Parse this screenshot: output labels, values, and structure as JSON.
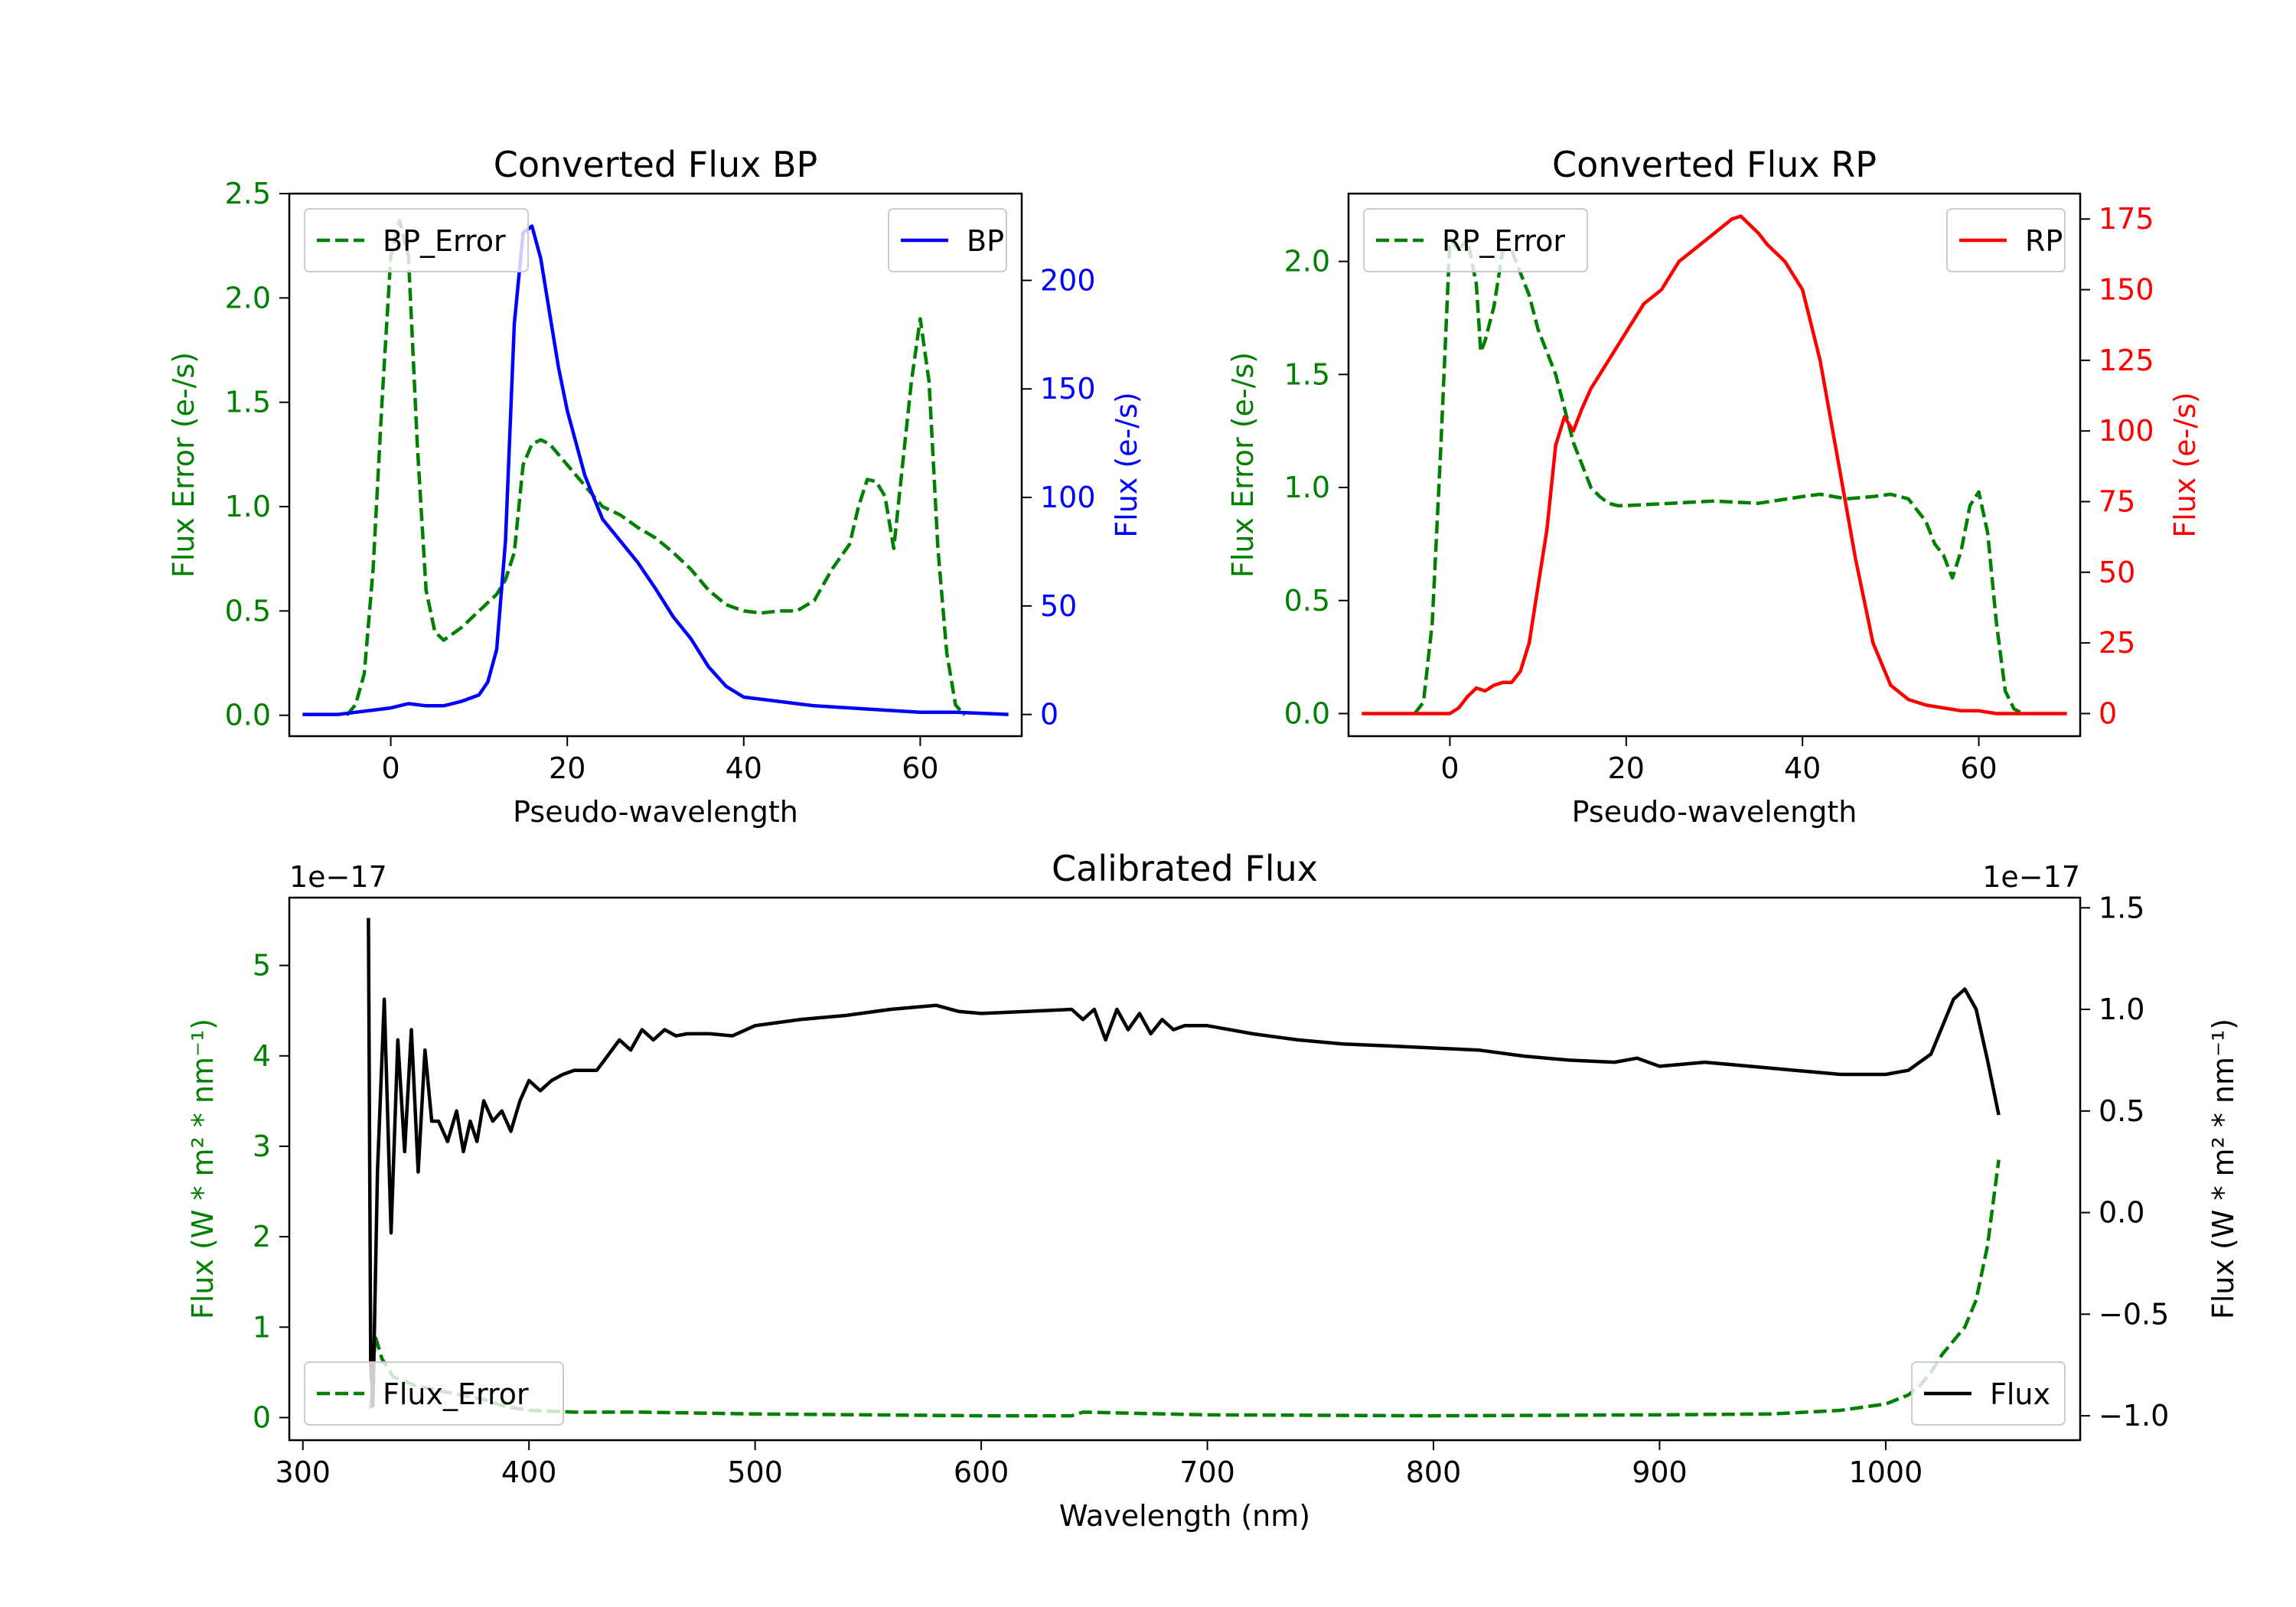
{
  "colors": {
    "green": "#008000",
    "blue": "#0000ff",
    "red": "#ff0000",
    "black": "#000000",
    "axis": "#000000",
    "legend_edge": "#cccccc"
  },
  "chart_data": [
    {
      "id": "bp",
      "type": "line",
      "title": "Converted Flux BP",
      "xlabel": "Pseudo-wavelength",
      "ylabel_left": "Flux Error (e-/s)",
      "ylabel_right": "Flux (e-/s)",
      "xlim": [
        -11.5,
        71.5
      ],
      "ylim_left": [
        -0.1,
        2.5
      ],
      "ylim_right": [
        -10,
        240
      ],
      "xticks": [
        0,
        20,
        40,
        60
      ],
      "yticks_left": [
        0.0,
        0.5,
        1.0,
        1.5,
        2.0,
        2.5
      ],
      "yticks_right": [
        0,
        50,
        100,
        150,
        200
      ],
      "legend_left": "top-left",
      "legend_right": "top-right",
      "series": [
        {
          "name": "BP_Error",
          "axis": "left",
          "color": "green",
          "style": "dashed",
          "x": [
            -5,
            -4,
            -3,
            -2,
            -1,
            0,
            1,
            2,
            3,
            4,
            5,
            6,
            8,
            10,
            12,
            13,
            14,
            15,
            16,
            17,
            18,
            20,
            22,
            24,
            26,
            28,
            30,
            32,
            34,
            36,
            38,
            40,
            42,
            44,
            46,
            48,
            50,
            52,
            53,
            54,
            55,
            56,
            57,
            58,
            59,
            60,
            61,
            62,
            63,
            64,
            65
          ],
          "y": [
            0.0,
            0.05,
            0.2,
            0.7,
            1.5,
            2.2,
            2.37,
            2.2,
            1.3,
            0.6,
            0.4,
            0.36,
            0.42,
            0.5,
            0.58,
            0.65,
            0.78,
            1.2,
            1.3,
            1.32,
            1.3,
            1.2,
            1.1,
            1.0,
            0.96,
            0.9,
            0.85,
            0.78,
            0.7,
            0.6,
            0.53,
            0.5,
            0.49,
            0.5,
            0.5,
            0.55,
            0.7,
            0.82,
            1.0,
            1.13,
            1.12,
            1.05,
            0.8,
            1.2,
            1.6,
            1.9,
            1.6,
            0.8,
            0.3,
            0.05,
            0.0
          ]
        },
        {
          "name": "BP",
          "axis": "right",
          "color": "blue",
          "style": "solid",
          "x": [
            -10,
            -8,
            -6,
            -4,
            -2,
            0,
            2,
            4,
            6,
            8,
            10,
            11,
            12,
            13,
            14,
            15,
            16,
            17,
            18,
            19,
            20,
            22,
            24,
            26,
            28,
            30,
            32,
            34,
            36,
            38,
            40,
            44,
            46,
            48,
            52,
            56,
            60,
            64,
            70
          ],
          "y": [
            0,
            0,
            0,
            1,
            2,
            3,
            5,
            4,
            4,
            6,
            9,
            15,
            30,
            80,
            180,
            222,
            225,
            210,
            185,
            160,
            140,
            110,
            90,
            80,
            70,
            58,
            45,
            35,
            22,
            13,
            8,
            6,
            5,
            4,
            3,
            2,
            1,
            1,
            0
          ]
        }
      ]
    },
    {
      "id": "rp",
      "type": "line",
      "title": "Converted Flux RP",
      "xlabel": "Pseudo-wavelength",
      "ylabel_left": "Flux Error (e-/s)",
      "ylabel_right": "Flux (e-/s)",
      "xlim": [
        -11.5,
        71.5
      ],
      "ylim_left": [
        -0.1,
        2.3
      ],
      "ylim_right": [
        -8,
        184
      ],
      "xticks": [
        0,
        20,
        40,
        60
      ],
      "yticks_left": [
        0.0,
        0.5,
        1.0,
        1.5,
        2.0
      ],
      "yticks_right": [
        0,
        25,
        50,
        75,
        100,
        125,
        150,
        175
      ],
      "legend_left": "top-left",
      "legend_right": "top-right",
      "series": [
        {
          "name": "RP_Error",
          "axis": "left",
          "color": "green",
          "style": "dashed",
          "x": [
            -4,
            -3,
            -2,
            -1,
            0,
            1,
            2,
            3,
            3.5,
            4,
            5,
            6,
            7,
            8,
            9,
            10,
            11,
            12,
            13,
            14,
            15,
            16,
            17,
            18,
            19,
            20,
            25,
            30,
            35,
            40,
            42,
            45,
            48,
            50,
            52,
            54,
            55,
            56,
            57,
            58,
            59,
            60,
            61,
            62,
            63,
            64,
            65
          ],
          "y": [
            0.0,
            0.05,
            0.4,
            1.2,
            2.1,
            2.05,
            2.1,
            1.9,
            1.6,
            1.65,
            1.8,
            2.05,
            2.05,
            1.95,
            1.85,
            1.7,
            1.6,
            1.5,
            1.35,
            1.2,
            1.1,
            1.0,
            0.96,
            0.93,
            0.92,
            0.92,
            0.93,
            0.94,
            0.93,
            0.96,
            0.97,
            0.95,
            0.96,
            0.97,
            0.95,
            0.85,
            0.75,
            0.7,
            0.6,
            0.72,
            0.92,
            0.98,
            0.8,
            0.4,
            0.1,
            0.02,
            0.0
          ]
        },
        {
          "name": "RP",
          "axis": "right",
          "color": "red",
          "style": "solid",
          "x": [
            -10,
            -5,
            -2,
            0,
            1,
            2,
            3,
            4,
            5,
            6,
            7,
            8,
            9,
            10,
            11,
            12,
            13,
            14,
            15,
            16,
            18,
            20,
            22,
            24,
            26,
            28,
            30,
            32,
            33,
            34,
            35,
            36,
            38,
            40,
            42,
            44,
            46,
            48,
            50,
            52,
            54,
            56,
            58,
            60,
            62,
            64,
            70
          ],
          "y": [
            0,
            0,
            0,
            0,
            2,
            6,
            9,
            8,
            10,
            11,
            11,
            15,
            25,
            45,
            65,
            95,
            105,
            100,
            108,
            115,
            125,
            135,
            145,
            150,
            160,
            165,
            170,
            175,
            176,
            173,
            170,
            166,
            160,
            150,
            125,
            90,
            55,
            25,
            10,
            5,
            3,
            2,
            1,
            1,
            0,
            0,
            0
          ]
        }
      ]
    },
    {
      "id": "calibrated",
      "type": "line",
      "title": "Calibrated Flux",
      "xlabel": "Wavelength (nm)",
      "ylabel_left": "Flux (W * m² * nm⁻¹)",
      "ylabel_right": "Flux (W * m² * nm⁻¹)",
      "offset_left": "1e−17",
      "offset_right": "1e−17",
      "xlim": [
        294,
        1086
      ],
      "ylim_left": [
        -0.25,
        5.75
      ],
      "ylim_right": [
        -1.12,
        1.55
      ],
      "xticks": [
        300,
        400,
        500,
        600,
        700,
        800,
        900,
        1000
      ],
      "yticks_left": [
        0,
        1,
        2,
        3,
        4,
        5
      ],
      "yticks_right": [
        -1.0,
        -0.5,
        0.0,
        0.5,
        1.0,
        1.5
      ],
      "legend_left": "bottom-left",
      "legend_right": "bottom-right",
      "series": [
        {
          "name": "Flux_Error",
          "axis": "left",
          "color": "green",
          "style": "dashed",
          "x": [
            330,
            332,
            335,
            340,
            350,
            360,
            370,
            380,
            390,
            400,
            420,
            450,
            500,
            550,
            600,
            640,
            645,
            700,
            800,
            900,
            950,
            980,
            1000,
            1010,
            1015,
            1020,
            1025,
            1030,
            1035,
            1040,
            1045,
            1050
          ],
          "y": [
            0.1,
            0.9,
            0.65,
            0.45,
            0.35,
            0.3,
            0.25,
            0.2,
            0.12,
            0.08,
            0.06,
            0.06,
            0.04,
            0.03,
            0.02,
            0.02,
            0.06,
            0.03,
            0.02,
            0.03,
            0.04,
            0.08,
            0.15,
            0.25,
            0.35,
            0.5,
            0.7,
            0.85,
            1.0,
            1.3,
            1.9,
            2.85
          ]
        },
        {
          "name": "Flux",
          "axis": "right",
          "color": "black",
          "style": "solid",
          "x": [
            329,
            330,
            331,
            333,
            336,
            339,
            342,
            345,
            348,
            351,
            354,
            357,
            360,
            364,
            368,
            371,
            374,
            377,
            380,
            384,
            388,
            392,
            396,
            400,
            405,
            410,
            415,
            420,
            430,
            440,
            445,
            450,
            455,
            460,
            465,
            470,
            480,
            490,
            500,
            520,
            540,
            560,
            580,
            590,
            600,
            620,
            640,
            645,
            650,
            655,
            660,
            665,
            670,
            675,
            680,
            685,
            690,
            700,
            720,
            740,
            760,
            780,
            800,
            820,
            840,
            860,
            880,
            890,
            900,
            920,
            940,
            960,
            980,
            1000,
            1010,
            1020,
            1030,
            1035,
            1040,
            1045,
            1050
          ],
          "y": [
            1.45,
            -0.75,
            -0.95,
            0.2,
            1.05,
            -0.1,
            0.85,
            0.3,
            0.9,
            0.2,
            0.8,
            0.45,
            0.45,
            0.35,
            0.5,
            0.3,
            0.45,
            0.35,
            0.55,
            0.45,
            0.5,
            0.4,
            0.55,
            0.65,
            0.6,
            0.65,
            0.68,
            0.7,
            0.7,
            0.85,
            0.8,
            0.9,
            0.85,
            0.9,
            0.87,
            0.88,
            0.88,
            0.87,
            0.92,
            0.95,
            0.97,
            1.0,
            1.02,
            0.99,
            0.98,
            0.99,
            1.0,
            0.95,
            1.0,
            0.85,
            1.0,
            0.9,
            0.98,
            0.88,
            0.95,
            0.9,
            0.92,
            0.92,
            0.88,
            0.85,
            0.83,
            0.82,
            0.81,
            0.8,
            0.77,
            0.75,
            0.74,
            0.76,
            0.72,
            0.74,
            0.72,
            0.7,
            0.68,
            0.68,
            0.7,
            0.78,
            1.05,
            1.1,
            1.0,
            0.75,
            0.48
          ]
        }
      ]
    }
  ]
}
